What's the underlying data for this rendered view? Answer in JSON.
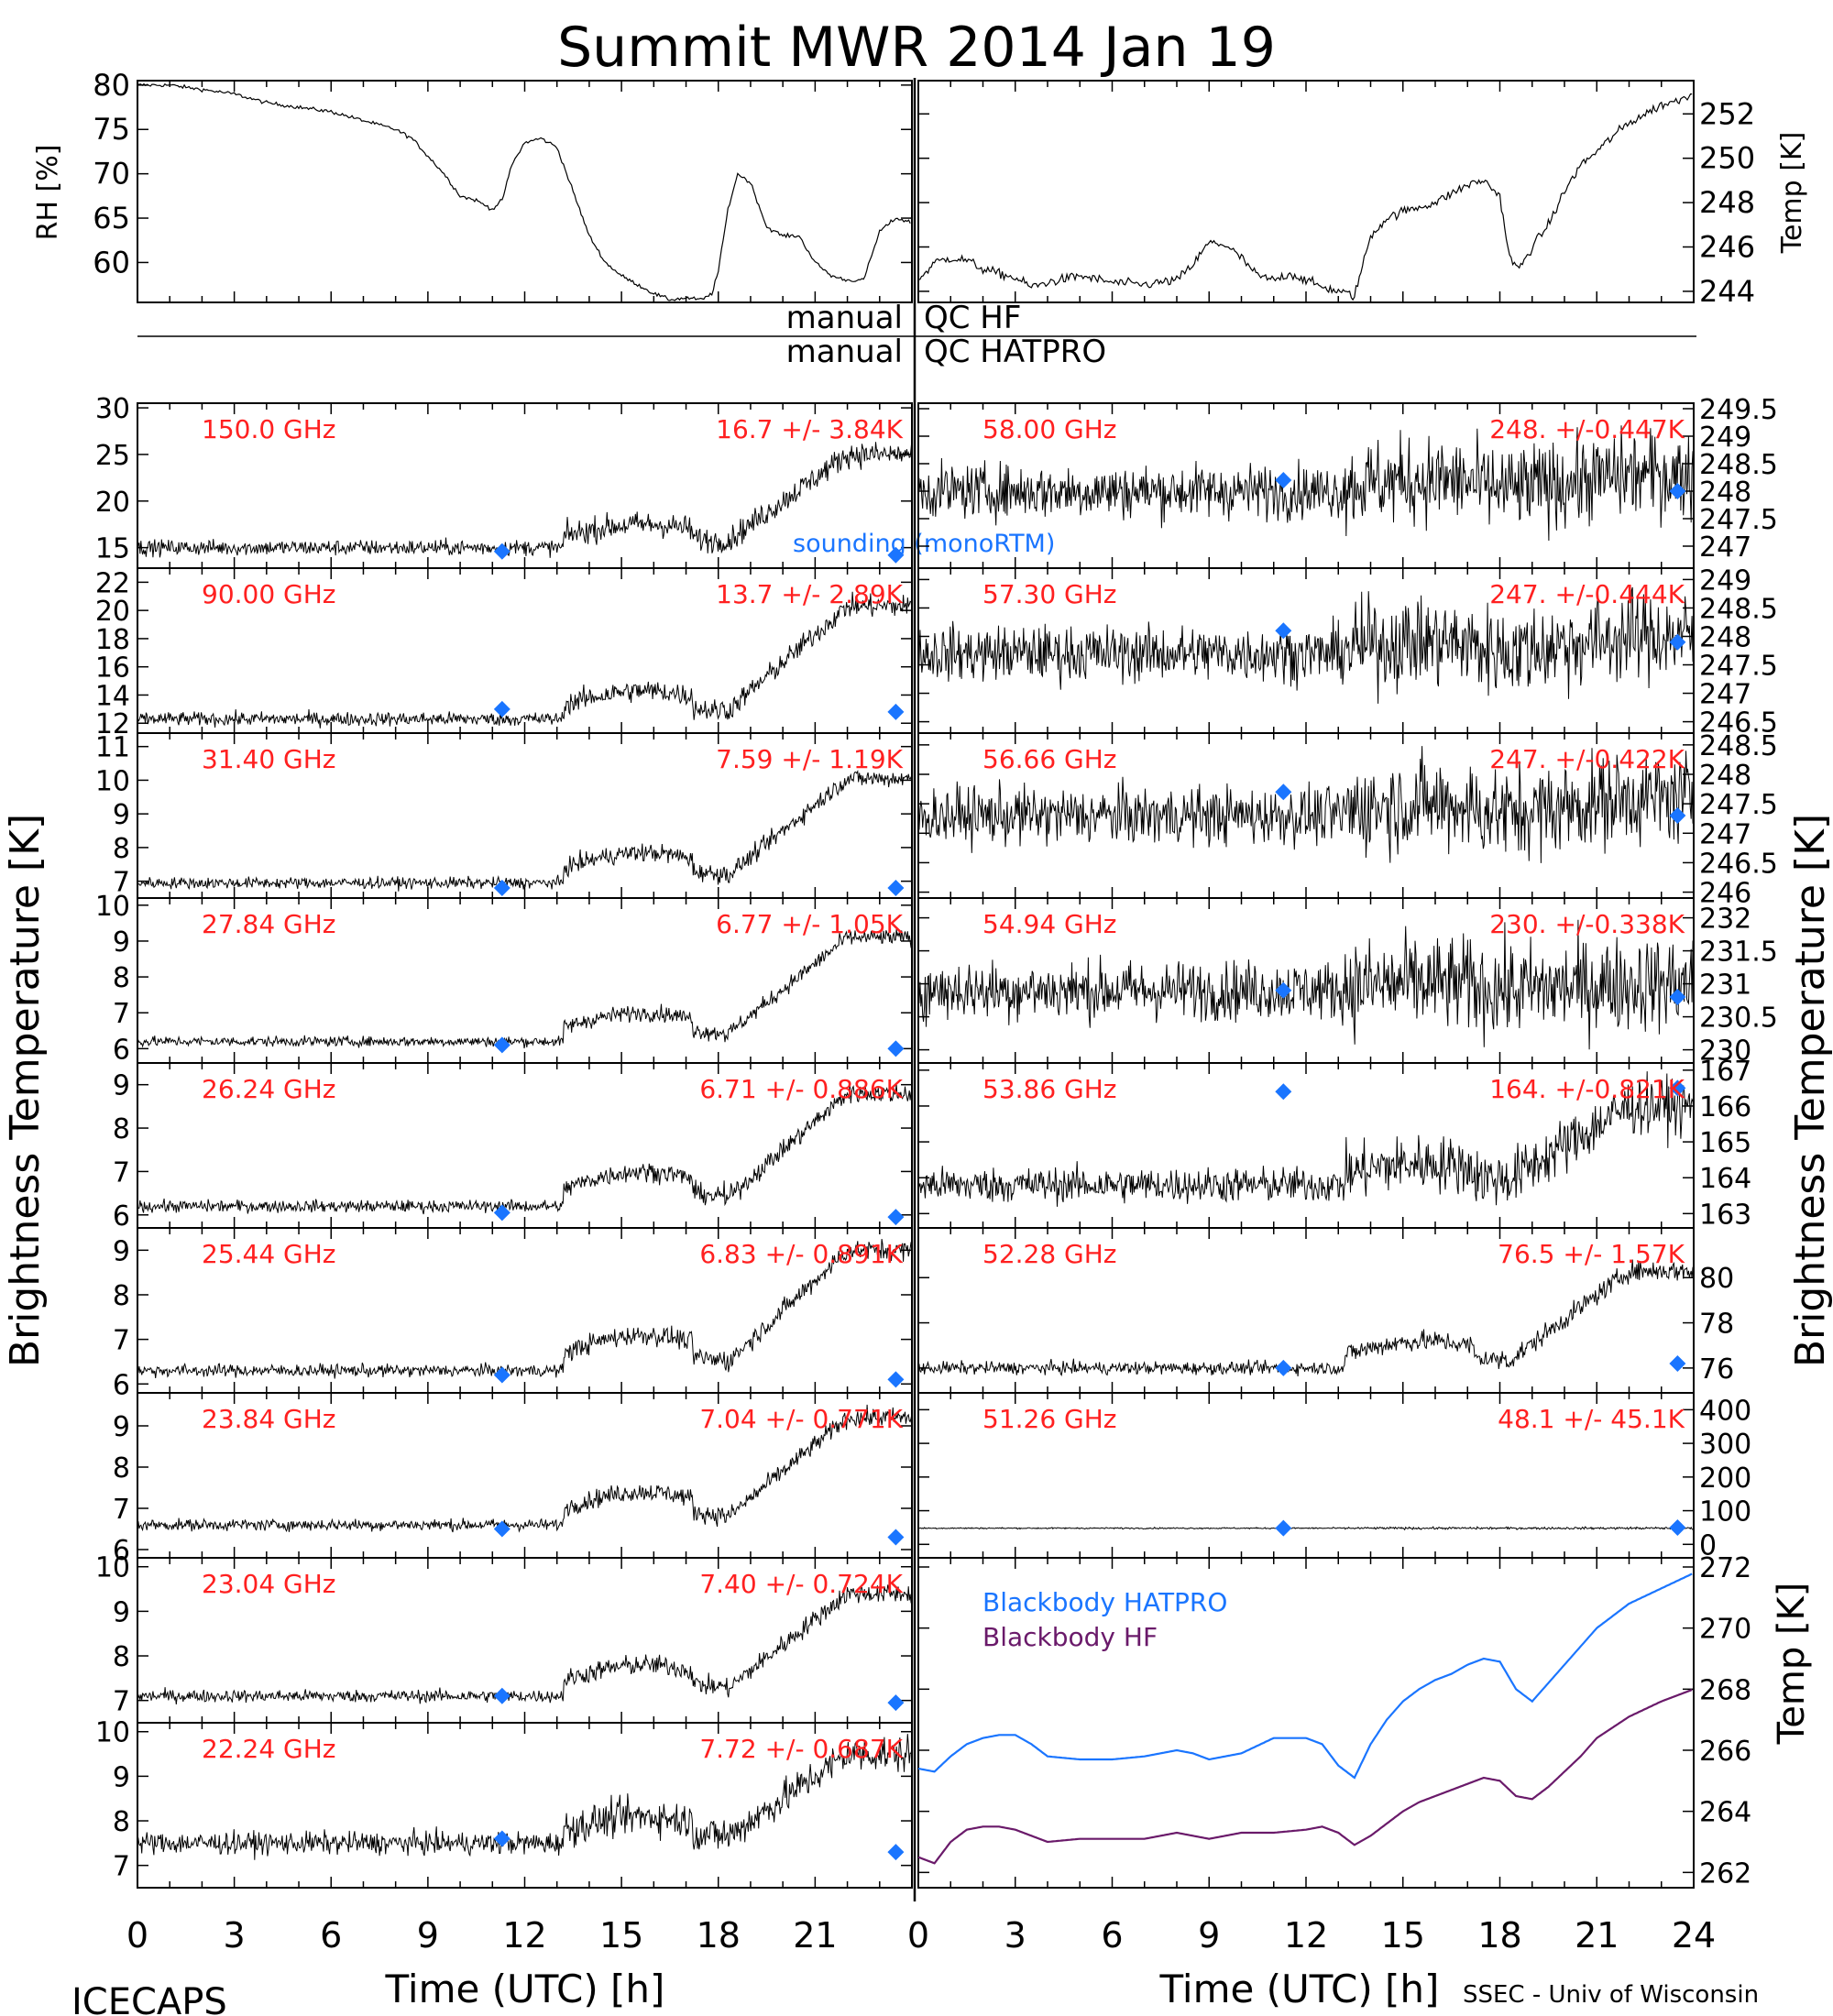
{
  "title": "Summit MWR 2014 Jan 19",
  "footer": {
    "left": "ICECAPS",
    "right": "SSEC - Univ of Wisconsin",
    "xlabel_left": "Time (UTC) [h]",
    "xlabel_right": "Time (UTC) [h]"
  },
  "side_labels": {
    "left": "Brightness Temperature [K]",
    "right": "Brightness Temperature [K]"
  },
  "qc": {
    "row1_left": "manual",
    "row1_right": "QC HF",
    "row2_left": "manual",
    "row2_right": "QC HATPRO"
  },
  "colors": {
    "series": "#000000",
    "channel_text": "#ff2020",
    "sounding": "#1a75ff",
    "blackbody_hatpro": "#1a75ff",
    "blackbody_hf": "#6a1a6a"
  },
  "chart_data": [
    {
      "type": "line",
      "name": "rh",
      "ylabel": "RH [%]",
      "ylim": [
        55.5,
        80.5
      ],
      "yticks": [
        60,
        65,
        70,
        75,
        80
      ],
      "xlim": [
        0,
        24
      ],
      "x": [
        0,
        1,
        2,
        3,
        4,
        5,
        6,
        7,
        8,
        8.5,
        9,
        9.5,
        10,
        10.5,
        11,
        11.3,
        11.6,
        12,
        12.5,
        13,
        13.5,
        14,
        14.5,
        15,
        15.5,
        16,
        16.5,
        17,
        17.5,
        17.8,
        18,
        18.3,
        18.6,
        19,
        19.5,
        20,
        20.5,
        21,
        21.5,
        22,
        22.5,
        23,
        23.5,
        24
      ],
      "y": [
        80,
        80,
        79.5,
        79,
        78,
        77.5,
        77,
        76,
        75,
        74,
        72,
        70,
        67.5,
        67,
        66,
        67,
        71,
        73.5,
        74,
        73,
        68,
        63,
        60,
        58.5,
        57.5,
        56.5,
        55.8,
        56,
        55.8,
        56.5,
        59,
        66,
        70,
        69,
        64,
        63,
        63,
        60,
        58.5,
        58,
        58,
        63.5,
        65,
        64.5
      ]
    },
    {
      "type": "line",
      "name": "temp",
      "ylabel": "Temp [K]",
      "ylim": [
        243.5,
        253.5
      ],
      "yticks": [
        244,
        246,
        248,
        250,
        252
      ],
      "xlim": [
        0,
        24
      ],
      "x": [
        0,
        0.5,
        1,
        1.5,
        2,
        2.5,
        3,
        3.5,
        4,
        5,
        6,
        7,
        8,
        8.5,
        9,
        9.5,
        10,
        10.5,
        11,
        11.5,
        12,
        12.5,
        13,
        13.5,
        14,
        14.5,
        15,
        15.5,
        16,
        16.5,
        17,
        17.5,
        18,
        18.3,
        18.6,
        19,
        19.5,
        20,
        20.5,
        21,
        21.5,
        22,
        22.5,
        23,
        23.5,
        24
      ],
      "y": [
        244.5,
        245.3,
        245.5,
        245.4,
        245,
        244.8,
        244.6,
        244.2,
        244.4,
        244.7,
        244.4,
        244.3,
        244.5,
        245.2,
        246.2,
        246.1,
        245.5,
        244.7,
        244.5,
        244.8,
        244.5,
        244.2,
        244,
        243.8,
        246.5,
        247.3,
        247.6,
        247.8,
        248,
        248.4,
        248.8,
        249,
        248.3,
        245.5,
        245,
        246,
        247,
        248.5,
        249.7,
        250.3,
        251,
        251.6,
        252,
        252.4,
        252.6,
        253
      ]
    },
    {
      "type": "scatter",
      "name": "hf-channels",
      "xlim": [
        0,
        24
      ],
      "xticks": [
        0,
        3,
        6,
        9,
        12,
        15,
        18,
        21
      ],
      "xlabel": "Time (UTC) [h]",
      "channels": [
        {
          "label": "150.0 GHz",
          "stat": "16.7 +/- 3.84K",
          "ylim": [
            12.8,
            30.5
          ],
          "yticks": [
            15,
            20,
            25,
            30
          ],
          "base": 15,
          "amp": 10,
          "bump": 2.5,
          "noise": 0.6,
          "sounding": [
            14.6,
            14.2
          ],
          "legend": "sounding (monoRTM)"
        },
        {
          "label": "90.00 GHz",
          "stat": "13.7 +/- 2.89K",
          "ylim": [
            11.3,
            23.0
          ],
          "yticks": [
            12,
            14,
            16,
            18,
            20,
            22
          ],
          "base": 12.3,
          "amp": 8,
          "bump": 2,
          "noise": 0.35,
          "sounding": [
            13.0,
            12.8
          ]
        },
        {
          "label": "31.40 GHz",
          "stat": "7.59 +/- 1.19K",
          "ylim": [
            6.5,
            11.4
          ],
          "yticks": [
            7,
            8,
            9,
            10,
            11
          ],
          "base": 6.95,
          "amp": 3.1,
          "bump": 0.9,
          "noise": 0.12,
          "sounding": [
            6.8,
            6.8
          ]
        },
        {
          "label": "27.84 GHz",
          "stat": "6.77 +/- 1.05K",
          "ylim": [
            5.6,
            10.2
          ],
          "yticks": [
            6,
            7,
            8,
            9,
            10
          ],
          "base": 6.2,
          "amp": 2.9,
          "bump": 0.8,
          "noise": 0.1,
          "sounding": [
            6.1,
            6.0
          ]
        },
        {
          "label": "26.24 GHz",
          "stat": "6.71 +/- 0.886K",
          "ylim": [
            5.7,
            9.5
          ],
          "yticks": [
            6,
            7,
            8,
            9
          ],
          "base": 6.2,
          "amp": 2.6,
          "bump": 0.8,
          "noise": 0.1,
          "sounding": [
            6.05,
            5.95
          ]
        },
        {
          "label": "25.44 GHz",
          "stat": "6.83 +/- 0.891K",
          "ylim": [
            5.8,
            9.5
          ],
          "yticks": [
            6,
            7,
            8,
            9
          ],
          "base": 6.3,
          "amp": 2.7,
          "bump": 0.8,
          "noise": 0.1,
          "sounding": [
            6.2,
            6.1
          ]
        },
        {
          "label": "23.84 GHz",
          "stat": "7.04 +/- 0.771K",
          "ylim": [
            5.8,
            9.8
          ],
          "yticks": [
            6,
            7,
            8,
            9
          ],
          "base": 6.6,
          "amp": 2.6,
          "bump": 0.8,
          "noise": 0.1,
          "sounding": [
            6.5,
            6.3
          ]
        },
        {
          "label": "23.04 GHz",
          "stat": "7.40 +/- 0.724K",
          "ylim": [
            6.5,
            10.2
          ],
          "yticks": [
            7,
            8,
            9,
            10
          ],
          "base": 7.1,
          "amp": 2.3,
          "bump": 0.7,
          "noise": 0.1,
          "sounding": [
            7.1,
            6.95
          ]
        },
        {
          "label": "22.24 GHz",
          "stat": "7.72 +/- 0.687K",
          "ylim": [
            6.5,
            10.2
          ],
          "yticks": [
            7,
            8,
            9,
            10
          ],
          "base": 7.5,
          "amp": 2.0,
          "bump": 0.6,
          "noise": 0.18,
          "sounding": [
            7.6,
            7.3
          ]
        }
      ]
    },
    {
      "type": "scatter",
      "name": "hatpro-channels",
      "xlim": [
        0,
        24
      ],
      "xticks": [
        0,
        3,
        6,
        9,
        12,
        15,
        18,
        21,
        24
      ],
      "xlabel": "Time (UTC) [h]",
      "channels": [
        {
          "label": "58.00 GHz",
          "stat": "248. +/-0.447K",
          "ylim": [
            246.6,
            249.6
          ],
          "yticks": [
            247.0,
            247.5,
            248.0,
            248.5,
            249.0,
            249.5
          ],
          "base": 248.0,
          "amp": 0.3,
          "bump": 0.2,
          "noise": 0.35,
          "sounding": [
            248.2,
            248.0
          ]
        },
        {
          "label": "57.30 GHz",
          "stat": "247. +/-0.444K",
          "ylim": [
            246.3,
            249.2
          ],
          "yticks": [
            246.5,
            247.0,
            247.5,
            248.0,
            248.5,
            249.0
          ],
          "base": 247.7,
          "amp": 0.3,
          "bump": 0.2,
          "noise": 0.35,
          "sounding": [
            248.1,
            247.9
          ]
        },
        {
          "label": "56.66 GHz",
          "stat": "247. +/-0.422K",
          "ylim": [
            245.9,
            248.7
          ],
          "yticks": [
            246.0,
            246.5,
            247.0,
            247.5,
            248.0,
            248.5
          ],
          "base": 247.3,
          "amp": 0.3,
          "bump": 0.2,
          "noise": 0.35,
          "sounding": [
            247.7,
            247.3
          ]
        },
        {
          "label": "54.94 GHz",
          "stat": "230. +/-0.338K",
          "ylim": [
            229.8,
            232.3
          ],
          "yticks": [
            230.0,
            230.5,
            231.0,
            231.5,
            232.0
          ],
          "base": 230.9,
          "amp": 0.1,
          "bump": 0.1,
          "noise": 0.32,
          "sounding": [
            230.9,
            230.8
          ]
        },
        {
          "label": "53.86 GHz",
          "stat": "164. +/-0.821K",
          "ylim": [
            162.6,
            167.2
          ],
          "yticks": [
            163,
            164,
            165,
            166,
            167
          ],
          "base": 163.8,
          "amp": 2.2,
          "bump": 0.6,
          "noise": 0.35,
          "sounding": [
            166.4,
            166.5
          ]
        },
        {
          "label": "52.28 GHz",
          "stat": "76.5 +/- 1.57K",
          "ylim": [
            74.9,
            82.2
          ],
          "yticks": [
            76,
            78,
            80
          ],
          "base": 76.0,
          "amp": 4.3,
          "bump": 1.2,
          "noise": 0.2,
          "sounding": [
            76.0,
            76.2
          ]
        },
        {
          "label": "51.26 GHz",
          "stat": "48.1 +/- 45.1K",
          "ylim": [
            -40,
            450
          ],
          "yticks": [
            0,
            100,
            200,
            300,
            400
          ],
          "base": 48,
          "amp": 0,
          "bump": 0,
          "noise": 1.5,
          "sounding": [
            48,
            50
          ]
        }
      ]
    },
    {
      "type": "line",
      "name": "blackbody",
      "ylabel": "Temp [K]",
      "ylim": [
        261.5,
        272.3
      ],
      "yticks": [
        262,
        264,
        266,
        268,
        270,
        272
      ],
      "xlim": [
        0,
        24
      ],
      "xticks": [
        0,
        3,
        6,
        9,
        12,
        15,
        18,
        21,
        24
      ],
      "series": [
        {
          "name": "Blackbody HATPRO",
          "x": [
            0,
            0.5,
            1,
            1.5,
            2,
            2.5,
            3,
            3.5,
            4,
            5,
            6,
            7,
            8,
            8.5,
            9,
            10,
            11,
            12,
            12.5,
            13,
            13.5,
            14,
            14.5,
            15,
            15.5,
            16,
            16.5,
            17,
            17.5,
            18,
            18.5,
            19,
            19.5,
            20,
            20.5,
            21,
            21.5,
            22,
            23,
            24
          ],
          "y": [
            265.4,
            265.3,
            265.8,
            266.2,
            266.4,
            266.5,
            266.5,
            266.2,
            265.8,
            265.7,
            265.7,
            265.8,
            266.0,
            265.9,
            265.7,
            265.9,
            266.4,
            266.4,
            266.2,
            265.5,
            265.1,
            266.2,
            267.0,
            267.6,
            268.0,
            268.3,
            268.5,
            268.8,
            269.0,
            268.9,
            268.0,
            267.6,
            268.2,
            268.8,
            269.4,
            270.0,
            270.4,
            270.8,
            271.3,
            271.8
          ]
        },
        {
          "name": "Blackbody HF",
          "x": [
            0,
            0.5,
            1,
            1.5,
            2,
            2.5,
            3,
            4,
            5,
            6,
            7,
            8,
            9,
            10,
            11,
            12,
            12.5,
            13,
            13.5,
            14,
            14.5,
            15,
            15.5,
            16,
            16.5,
            17,
            17.5,
            18,
            18.5,
            19,
            19.5,
            20,
            20.5,
            21,
            22,
            23,
            24
          ],
          "y": [
            262.5,
            262.3,
            263.0,
            263.4,
            263.5,
            263.5,
            263.4,
            263.0,
            263.1,
            263.1,
            263.1,
            263.3,
            263.1,
            263.3,
            263.3,
            263.4,
            263.5,
            263.3,
            262.9,
            263.2,
            263.6,
            264.0,
            264.3,
            264.5,
            264.7,
            264.9,
            265.1,
            265.0,
            264.5,
            264.4,
            264.8,
            265.3,
            265.8,
            266.4,
            267.1,
            267.6,
            268.0
          ]
        }
      ]
    }
  ]
}
